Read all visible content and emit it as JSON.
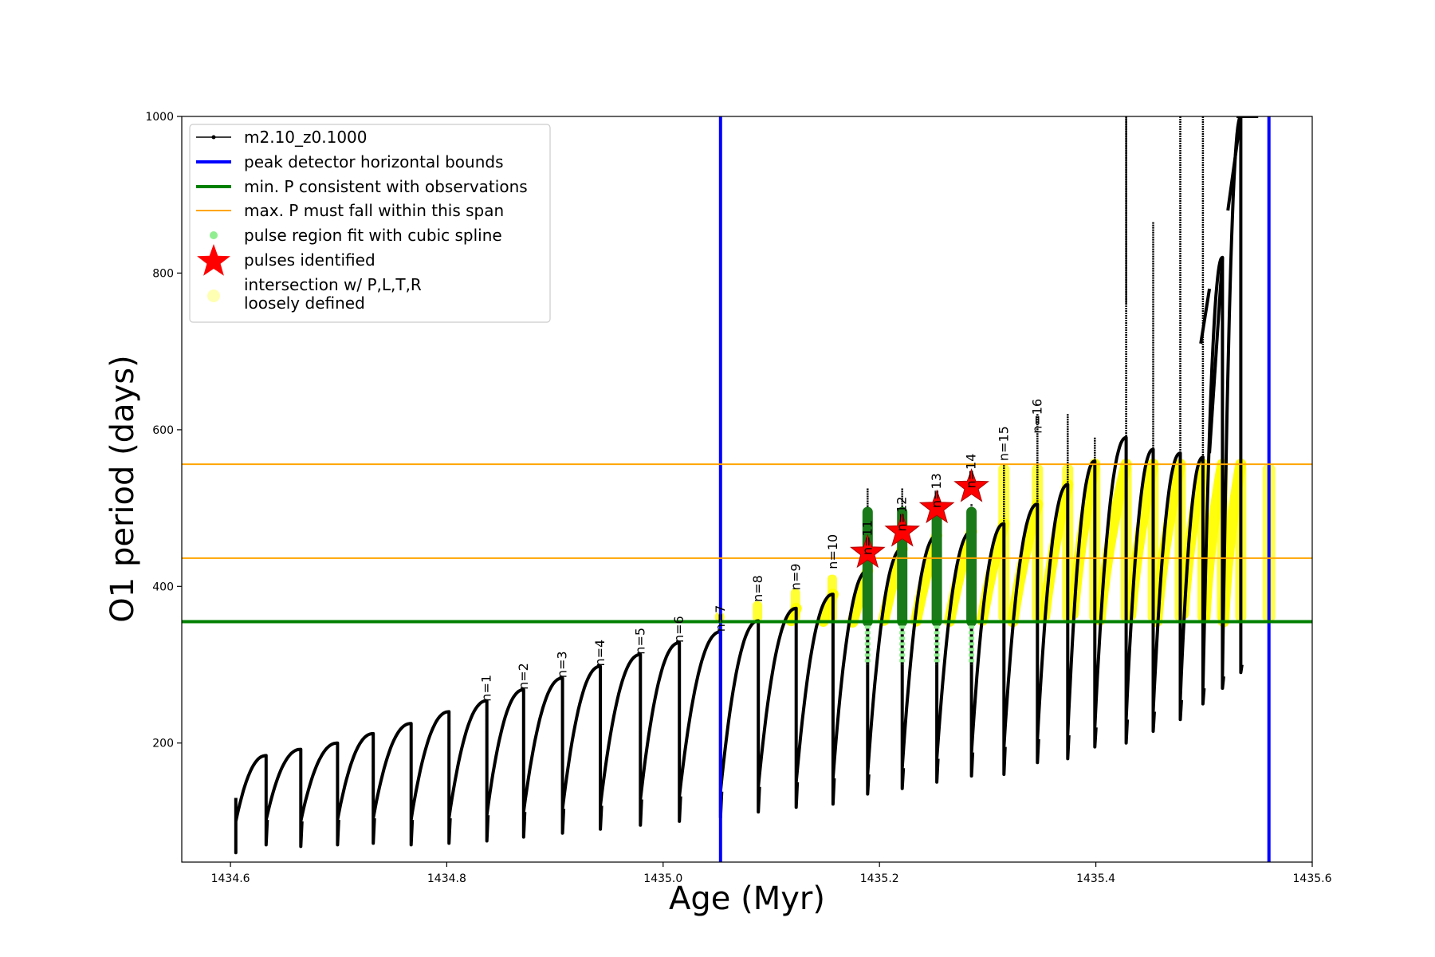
{
  "chart_data": {
    "type": "line",
    "title": "",
    "xlabel": "Age (Myr)",
    "ylabel": "O1 period (days)",
    "xlim": [
      1434.555,
      1435.6
    ],
    "ylim": [
      48,
      1000
    ],
    "xticks": [
      1434.6,
      1434.8,
      1435.0,
      1435.2,
      1435.4,
      1435.6
    ],
    "xtick_labels": [
      "1434.6",
      "1434.8",
      "1435.0",
      "1435.2",
      "1435.4",
      "1435.6"
    ],
    "yticks": [
      200,
      400,
      600,
      800,
      1000
    ],
    "ytick_labels": [
      "200",
      "400",
      "600",
      "800",
      "1000"
    ],
    "grid": false,
    "legend_position": "top-left",
    "colors": {
      "track": "#000000",
      "bounds": "#0000ff",
      "min_period": "#008000",
      "max_span": "#ffa500",
      "spline": "#90ee90",
      "star": "#ff0000",
      "loose": "#ffff00"
    },
    "legend": [
      {
        "label": "m2.10_z0.1000",
        "kind": "line-dot",
        "color": "#000000"
      },
      {
        "label": "peak detector horizontal bounds",
        "kind": "thick-line",
        "color": "#0000ff"
      },
      {
        "label": "min. P consistent with observations",
        "kind": "thick-line",
        "color": "#008000"
      },
      {
        "label": "max. P must fall within this span",
        "kind": "thin-line",
        "color": "#ffa500"
      },
      {
        "label": "pulse region fit with cubic spline",
        "kind": "dot",
        "color": "#90ee90"
      },
      {
        "label": "pulses identified",
        "kind": "star",
        "color": "#ff0000"
      },
      {
        "label": "intersection w/ P,L,T,R",
        "label2": "loosely defined",
        "kind": "big-dot",
        "color": "#ffffb3"
      }
    ],
    "vertical_bounds": [
      1435.053,
      1435.56
    ],
    "min_period": 355,
    "max_span": [
      436,
      556
    ],
    "track_start_age": 1434.605,
    "pulses": [
      {
        "n": 0,
        "age": 1434.633,
        "min": 70,
        "start": 102,
        "peak": 184
      },
      {
        "n": 0,
        "age": 1434.665,
        "min": 68,
        "start": 100,
        "peak": 192
      },
      {
        "n": 0,
        "age": 1434.699,
        "min": 70,
        "start": 102,
        "peak": 200
      },
      {
        "n": 0,
        "age": 1434.732,
        "min": 72,
        "start": 104,
        "peak": 212
      },
      {
        "n": 0,
        "age": 1434.767,
        "min": 70,
        "start": 102,
        "peak": 225
      },
      {
        "n": 0,
        "age": 1434.802,
        "min": 72,
        "start": 104,
        "peak": 240
      },
      {
        "n": 1,
        "age": 1434.837,
        "min": 75,
        "start": 108,
        "peak": 254
      },
      {
        "n": 2,
        "age": 1434.871,
        "min": 80,
        "start": 112,
        "peak": 268
      },
      {
        "n": 3,
        "age": 1434.907,
        "min": 85,
        "start": 116,
        "peak": 283
      },
      {
        "n": 4,
        "age": 1434.942,
        "min": 90,
        "start": 120,
        "peak": 298
      },
      {
        "n": 5,
        "age": 1434.979,
        "min": 95,
        "start": 128,
        "peak": 313
      },
      {
        "n": 6,
        "age": 1435.015,
        "min": 100,
        "start": 132,
        "peak": 328
      },
      {
        "n": 7,
        "age": 1435.053,
        "min": 105,
        "start": 138,
        "peak": 342
      },
      {
        "n": 8,
        "age": 1435.088,
        "min": 112,
        "start": 144,
        "peak": 356
      },
      {
        "n": 9,
        "age": 1435.123,
        "min": 118,
        "start": 150,
        "peak": 372
      },
      {
        "n": 10,
        "age": 1435.157,
        "min": 122,
        "start": 155,
        "peak": 390
      },
      {
        "n": 11,
        "age": 1435.189,
        "min": 135,
        "start": 160,
        "peak": 420
      },
      {
        "n": 12,
        "age": 1435.221,
        "min": 142,
        "start": 168,
        "peak": 448
      },
      {
        "n": 13,
        "age": 1435.253,
        "min": 150,
        "start": 180,
        "peak": 465
      },
      {
        "n": 14,
        "age": 1435.285,
        "min": 158,
        "start": 188,
        "peak": 470
      },
      {
        "n": 15,
        "age": 1435.315,
        "min": 160,
        "start": 195,
        "peak": 480
      },
      {
        "n": 16,
        "age": 1435.346,
        "min": 175,
        "start": 205,
        "peak": 505
      },
      {
        "n": 0,
        "age": 1435.374,
        "min": 180,
        "start": 210,
        "peak": 530
      },
      {
        "n": 0,
        "age": 1435.399,
        "min": 195,
        "start": 220,
        "peak": 560
      },
      {
        "n": 0,
        "age": 1435.428,
        "min": 200,
        "start": 230,
        "peak": 590
      },
      {
        "n": 0,
        "age": 1435.453,
        "min": 215,
        "start": 240,
        "peak": 575
      },
      {
        "n": 0,
        "age": 1435.478,
        "min": 230,
        "start": 255,
        "peak": 570
      },
      {
        "n": 0,
        "age": 1435.499,
        "min": 250,
        "start": 270,
        "peak": 565
      },
      {
        "n": 0,
        "age": 1435.517,
        "min": 270,
        "start": 285,
        "peak": 820
      },
      {
        "n": 0,
        "age": 1435.534,
        "min": 290,
        "start": 300,
        "peak": 1000
      }
    ],
    "pulse_labels": [
      {
        "text": "n=1",
        "age": 1434.837,
        "period": 253
      },
      {
        "text": "n=2",
        "age": 1434.871,
        "period": 268
      },
      {
        "text": "n=3",
        "age": 1434.907,
        "period": 283
      },
      {
        "text": "n=4",
        "age": 1434.942,
        "period": 298
      },
      {
        "text": "n=5",
        "age": 1434.979,
        "period": 313
      },
      {
        "text": "n=6",
        "age": 1435.015,
        "period": 328
      },
      {
        "text": "n=7",
        "age": 1435.053,
        "period": 342
      },
      {
        "text": "n=8",
        "age": 1435.088,
        "period": 380
      },
      {
        "text": "n=9",
        "age": 1435.123,
        "period": 395
      },
      {
        "text": "n=10",
        "age": 1435.157,
        "period": 422
      },
      {
        "text": "n=11",
        "age": 1435.189,
        "period": 440
      },
      {
        "text": "n=12",
        "age": 1435.221,
        "period": 470
      },
      {
        "text": "n=13",
        "age": 1435.253,
        "period": 500
      },
      {
        "text": "n=14",
        "age": 1435.285,
        "period": 525
      },
      {
        "text": "n=15",
        "age": 1435.315,
        "period": 560
      },
      {
        "text": "n=16",
        "age": 1435.346,
        "period": 595
      }
    ],
    "identified_pulses": [
      {
        "age": 1435.189,
        "period": 443
      },
      {
        "age": 1435.221,
        "period": 470
      },
      {
        "age": 1435.253,
        "period": 500
      },
      {
        "age": 1435.285,
        "period": 527
      }
    ],
    "spike_tops": [
      {
        "age": 1435.157,
        "period": 385
      },
      {
        "age": 1435.189,
        "period": 525
      },
      {
        "age": 1435.221,
        "period": 525
      },
      {
        "age": 1435.253,
        "period": 510
      },
      {
        "age": 1435.285,
        "period": 505
      },
      {
        "age": 1435.315,
        "period": 555
      },
      {
        "age": 1435.346,
        "period": 620
      },
      {
        "age": 1435.374,
        "period": 620
      },
      {
        "age": 1435.399,
        "period": 590
      },
      {
        "age": 1435.428,
        "period": 1000
      },
      {
        "age": 1435.453,
        "period": 865
      },
      {
        "age": 1435.478,
        "period": 1000
      },
      {
        "age": 1435.499,
        "period": 1000
      },
      {
        "age": 1435.534,
        "period": 1000
      }
    ]
  }
}
